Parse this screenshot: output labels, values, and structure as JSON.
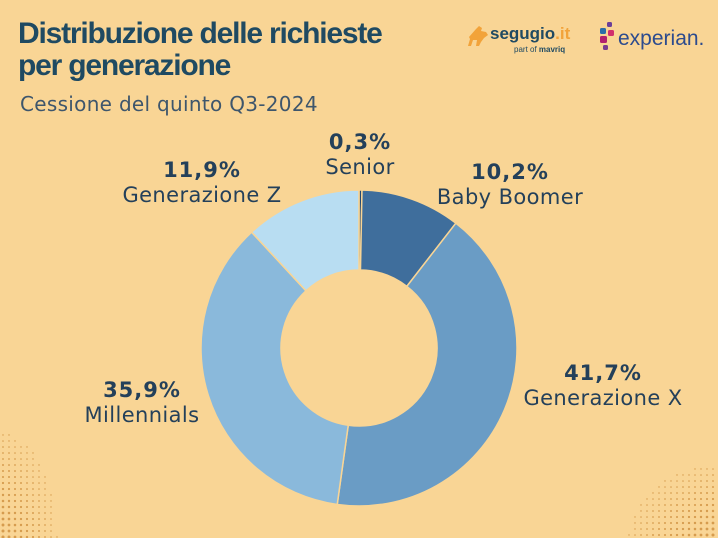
{
  "header": {
    "title_line1": "Distribuzione delle richieste",
    "title_line2": "per generazione",
    "subtitle": "Cessione del quinto Q3-2024"
  },
  "logos": {
    "segugio_name": "segugio",
    "segugio_tld": ".it",
    "segugio_tagline_prefix": "part of ",
    "segugio_tagline_brand": "mavriq",
    "experian_name": "experian."
  },
  "colors": {
    "background": "#f9d595",
    "title": "#1f4a62",
    "label_text": "#24405a"
  },
  "chart_data": {
    "type": "pie",
    "donut": true,
    "categories": [
      "Senior",
      "Baby Boomer",
      "Generazione X",
      "Millennials",
      "Generazione Z"
    ],
    "values": [
      0.3,
      10.2,
      41.7,
      35.9,
      11.9
    ],
    "value_labels": [
      "0,3%",
      "10,2%",
      "41,7%",
      "35,9%",
      "11,9%"
    ],
    "colors": [
      "#26496f",
      "#3f6e9c",
      "#6a9cc5",
      "#8ab9db",
      "#b8ddf2"
    ],
    "start": "top, clockwise"
  }
}
